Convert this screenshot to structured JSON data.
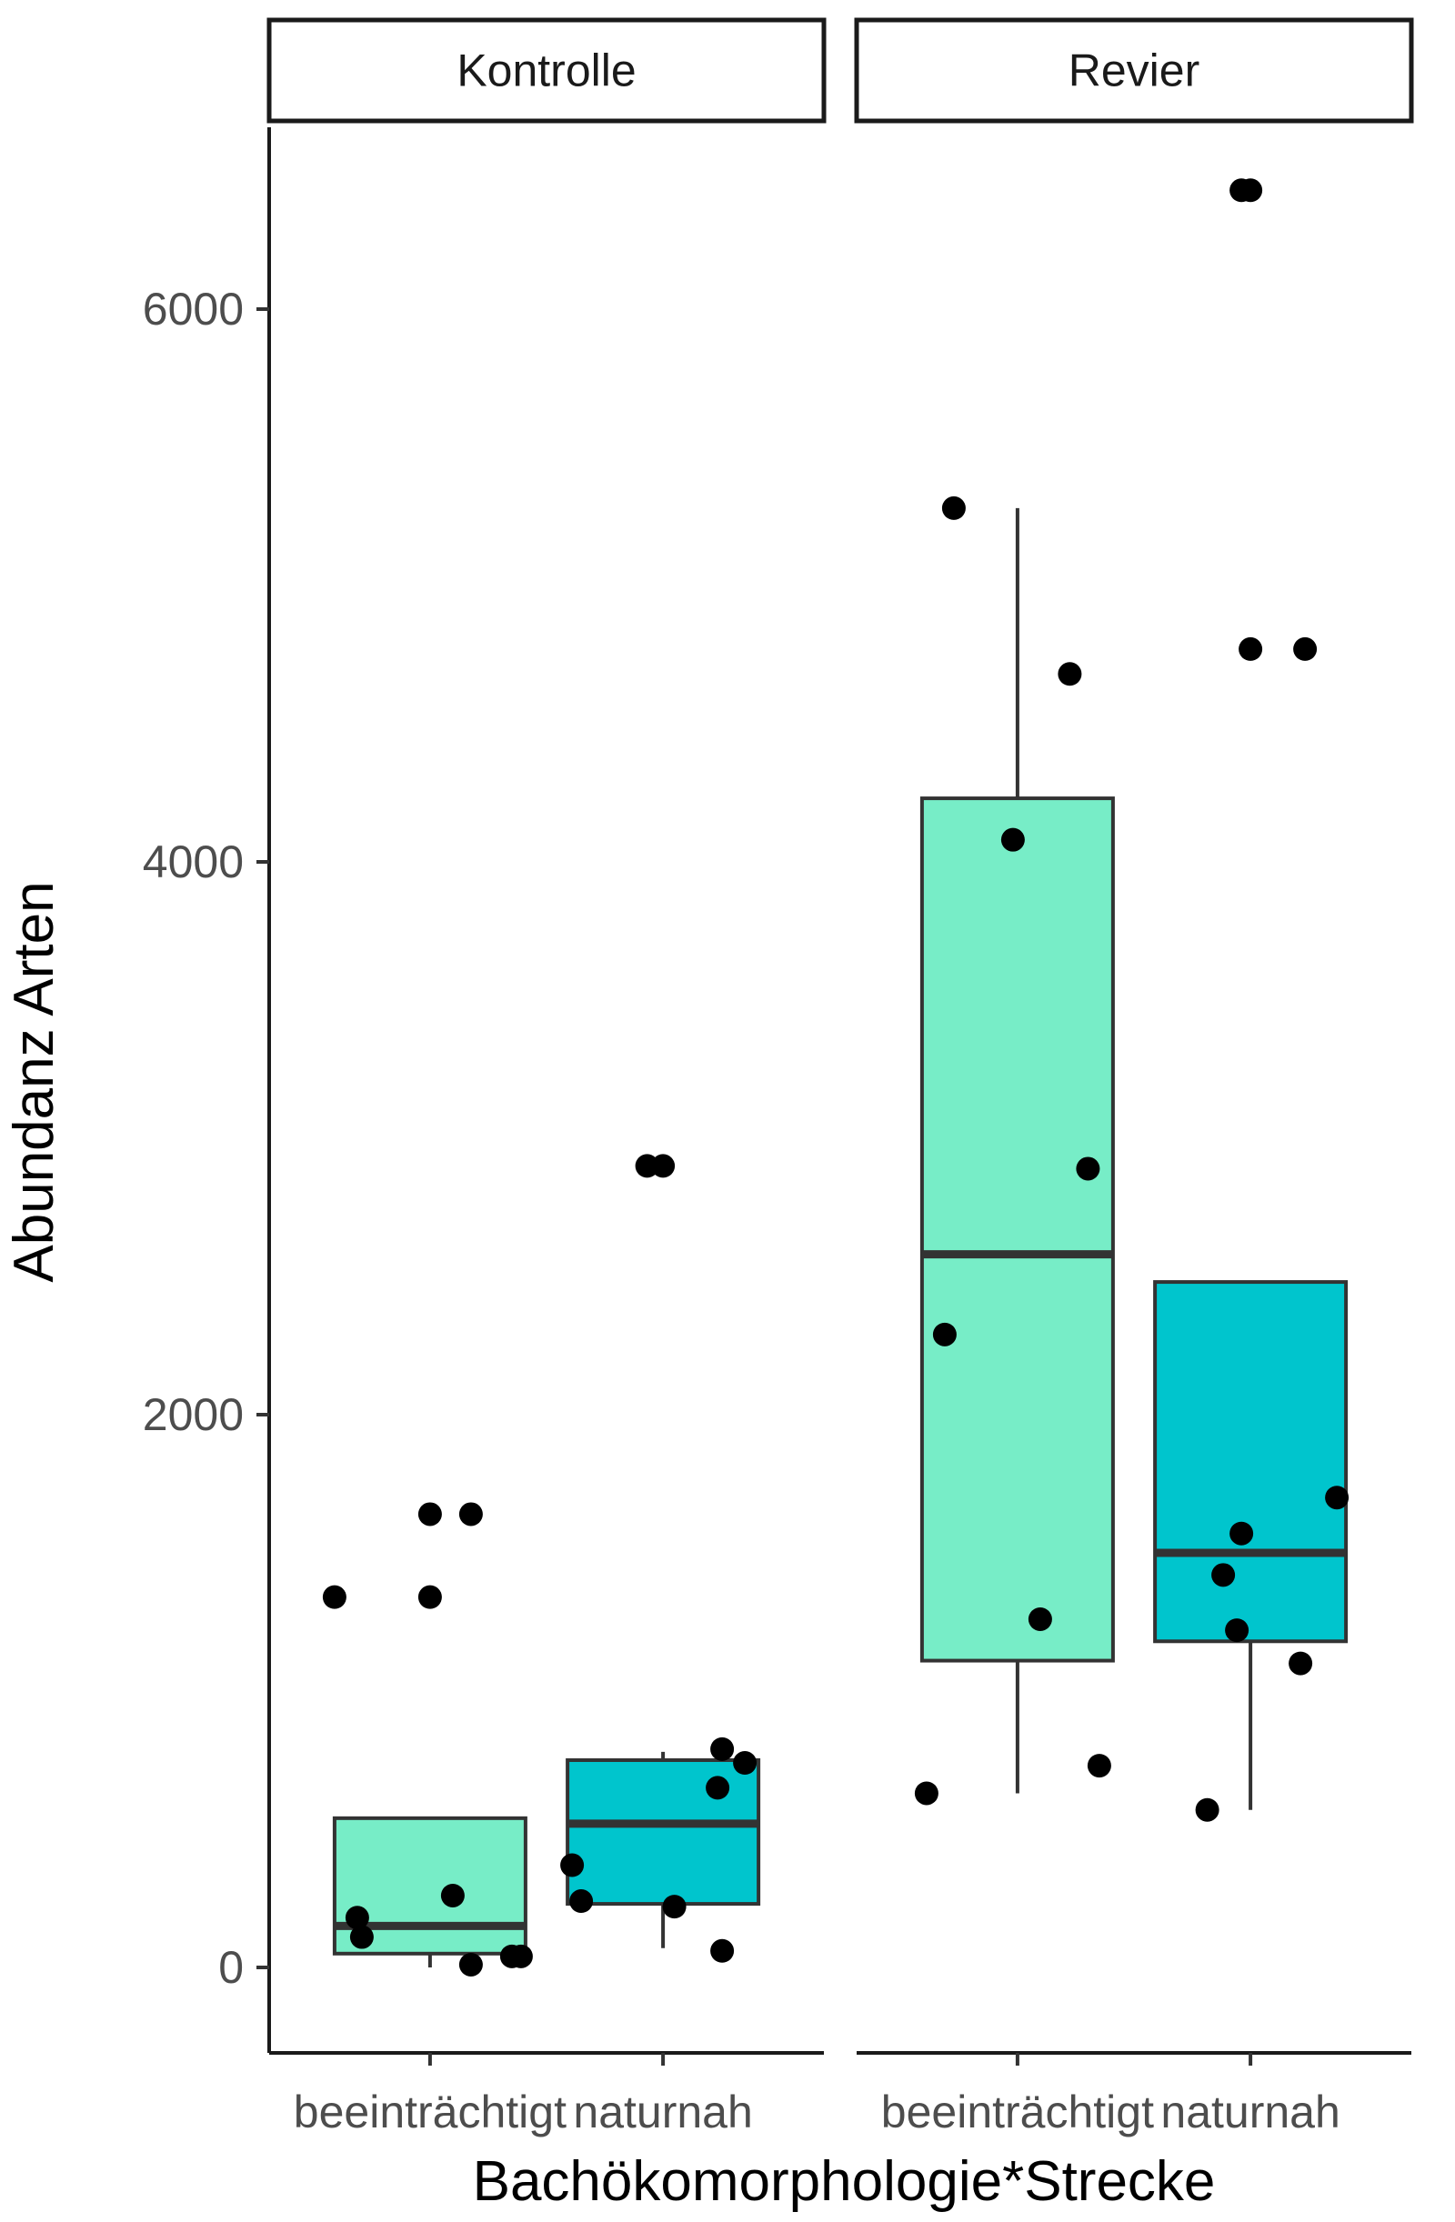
{
  "chart_data": {
    "type": "boxplot",
    "xlabel": "Bachökomorphologie*Strecke",
    "ylabel": "Abundanz Arten",
    "ylim": [
      -300,
      6950
    ],
    "yticks": [
      0,
      2000,
      4000,
      6000
    ],
    "grid": false,
    "legend": "none",
    "categories": [
      "beeinträchtigt",
      "naturnah"
    ],
    "colors": {
      "beeinträchtigt": "#77edc7",
      "naturnah": "#00c5cd"
    },
    "panels": [
      {
        "label": "Kontrolle",
        "groups": [
          {
            "category": "beeinträchtigt",
            "box": {
              "whisker_low": 0,
              "q1": 50,
              "median": 150,
              "q3": 540,
              "whisker_high": 540
            },
            "points": [
              {
                "x": -0.42,
                "y": 1340
              },
              {
                "x": -0.32,
                "y": 180
              },
              {
                "x": -0.3,
                "y": 110
              },
              {
                "x": 0.0,
                "y": 1640
              },
              {
                "x": 0.0,
                "y": 1340
              },
              {
                "x": 0.1,
                "y": 260
              },
              {
                "x": 0.18,
                "y": 10
              },
              {
                "x": 0.36,
                "y": 40
              },
              {
                "x": 0.4,
                "y": 40
              },
              {
                "x": 0.18,
                "y": 1640
              }
            ]
          },
          {
            "category": "naturnah",
            "box": {
              "whisker_low": 70,
              "q1": 230,
              "median": 520,
              "q3": 750,
              "whisker_high": 780
            },
            "points": [
              {
                "x": -0.07,
                "y": 2900
              },
              {
                "x": 0.0,
                "y": 2900
              },
              {
                "x": -0.4,
                "y": 370
              },
              {
                "x": -0.36,
                "y": 240
              },
              {
                "x": 0.05,
                "y": 220
              },
              {
                "x": 0.24,
                "y": 650
              },
              {
                "x": 0.26,
                "y": 60
              },
              {
                "x": 0.26,
                "y": 790
              },
              {
                "x": 0.36,
                "y": 740
              }
            ]
          }
        ]
      },
      {
        "label": "Revier",
        "groups": [
          {
            "category": "beeinträchtigt",
            "box": {
              "whisker_low": 630,
              "q1": 1110,
              "median": 2580,
              "q3": 4230,
              "whisker_high": 5280
            },
            "points": [
              {
                "x": -0.28,
                "y": 5280
              },
              {
                "x": 0.23,
                "y": 4680
              },
              {
                "x": -0.02,
                "y": 4080
              },
              {
                "x": 0.31,
                "y": 2890
              },
              {
                "x": -0.32,
                "y": 2290
              },
              {
                "x": 0.1,
                "y": 1260
              },
              {
                "x": 0.36,
                "y": 730
              },
              {
                "x": -0.4,
                "y": 630
              }
            ]
          },
          {
            "category": "naturnah",
            "box": {
              "whisker_low": 570,
              "q1": 1180,
              "median": 1500,
              "q3": 2480,
              "whisker_high": 2480
            },
            "points": [
              {
                "x": -0.04,
                "y": 6430
              },
              {
                "x": 0.0,
                "y": 6430
              },
              {
                "x": 0.0,
                "y": 4770
              },
              {
                "x": 0.24,
                "y": 4770
              },
              {
                "x": -0.04,
                "y": 1570
              },
              {
                "x": -0.12,
                "y": 1420
              },
              {
                "x": -0.06,
                "y": 1220
              },
              {
                "x": 0.22,
                "y": 1100
              },
              {
                "x": 0.38,
                "y": 1700
              },
              {
                "x": -0.19,
                "y": 570
              }
            ]
          }
        ]
      }
    ]
  }
}
